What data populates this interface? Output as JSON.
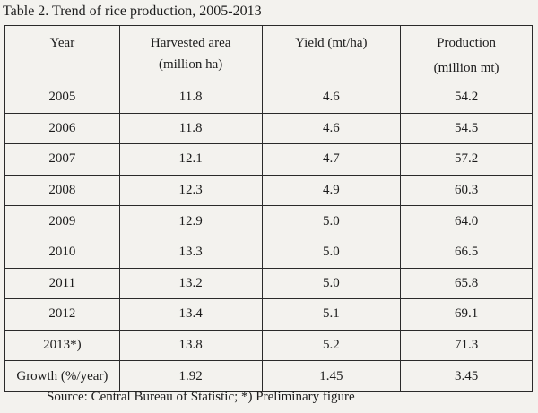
{
  "caption": "Table 2.  Trend of rice production, 2005-2013",
  "headers": [
    {
      "line1": "Year",
      "line2": ""
    },
    {
      "line1": "Harvested area",
      "line2": "(million ha)"
    },
    {
      "line1": "Yield (mt/ha)",
      "line2": ""
    },
    {
      "line1": "Production",
      "line2": "(million mt)"
    }
  ],
  "rows": [
    [
      "2005",
      "11.8",
      "4.6",
      "54.2"
    ],
    [
      "2006",
      "11.8",
      "4.6",
      "54.5"
    ],
    [
      "2007",
      "12.1",
      "4.7",
      "57.2"
    ],
    [
      "2008",
      "12.3",
      "4.9",
      "60.3"
    ],
    [
      "2009",
      "12.9",
      "5.0",
      "64.0"
    ],
    [
      "2010",
      "13.3",
      "5.0",
      "66.5"
    ],
    [
      "2011",
      "13.2",
      "5.0",
      "65.8"
    ],
    [
      "2012",
      "13.4",
      "5.1",
      "69.1"
    ],
    [
      "2013*)",
      "13.8",
      "5.2",
      "71.3"
    ],
    [
      "Growth (%/year)",
      "1.92",
      "1.45",
      "3.45"
    ]
  ],
  "source": "Source: Central Bureau of Statistic; *) Preliminary figure"
}
